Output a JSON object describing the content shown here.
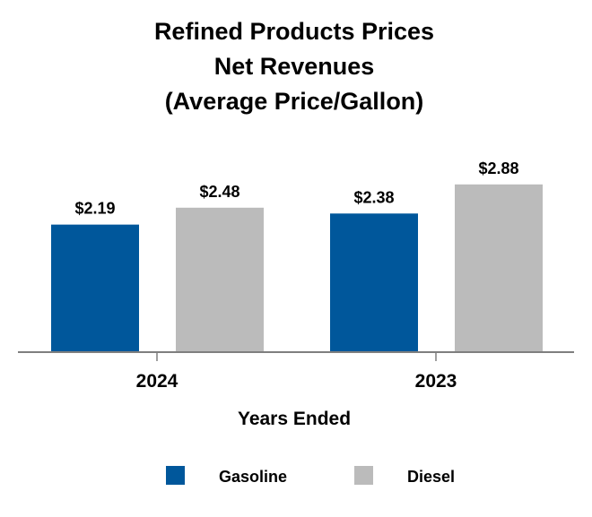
{
  "chart_data": {
    "type": "bar",
    "title": [
      "Refined Products Prices",
      "Net Revenues",
      "(Average Price/Gallon)"
    ],
    "xlabel": "Years Ended",
    "ylabel": "",
    "categories": [
      "2024",
      "2023"
    ],
    "series": [
      {
        "name": "Gasoline",
        "color": "#00579B",
        "values": [
          2.19,
          2.38
        ],
        "labels": [
          "$2.19",
          "$2.38"
        ]
      },
      {
        "name": "Diesel",
        "color": "#BBBBBB",
        "values": [
          2.48,
          2.88
        ],
        "labels": [
          "$2.48",
          "$2.88"
        ]
      }
    ],
    "ylim": [
      0,
      3.0
    ],
    "grid": false,
    "legend_position": "bottom"
  }
}
